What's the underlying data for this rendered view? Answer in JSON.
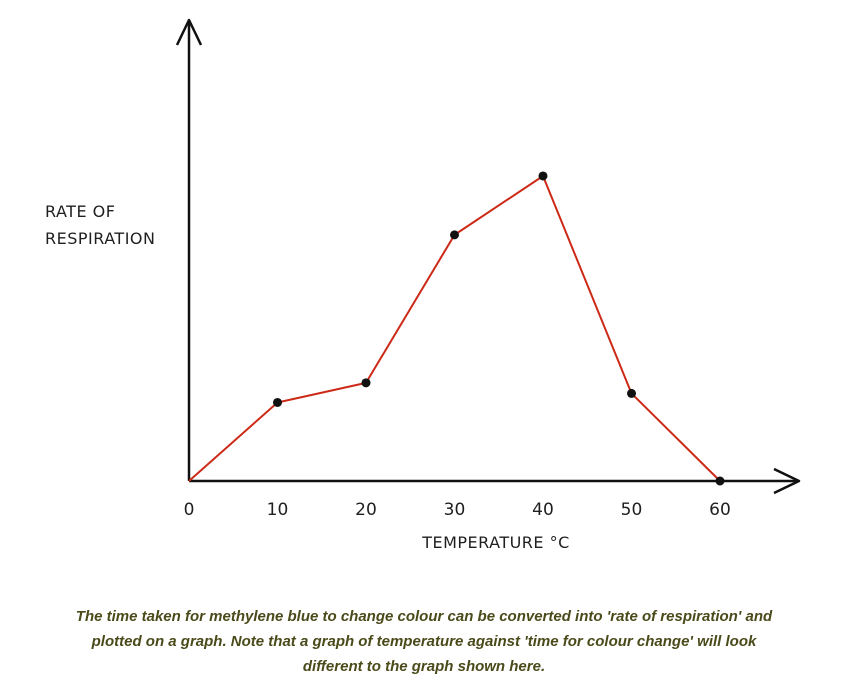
{
  "chart_data": {
    "type": "line",
    "x": [
      0,
      10,
      20,
      30,
      40,
      50,
      60
    ],
    "series": [
      {
        "values": [
          0,
          2.6,
          3.25,
          8.15,
          10.1,
          2.9,
          0
        ]
      }
    ],
    "xticks": [
      "0",
      "10",
      "20",
      "30",
      "40",
      "50",
      "60"
    ],
    "xlabel": "TEMPERATURE °C",
    "ylabel_lines": [
      "RATE  OF",
      "RESPIRATION"
    ],
    "xlim": [
      0,
      60
    ],
    "ylim": [
      0,
      15
    ],
    "y_ticks_shown": false,
    "grid": false,
    "legend": "none",
    "colors": {
      "line": "#cc2a17",
      "points": "#111111",
      "axes": "#111111"
    }
  },
  "caption": {
    "lines": [
      "The time taken for methylene blue to change colour can be converted into 'rate of respiration' and",
      "plotted on a graph. Note that a graph of temperature against 'time for colour change' will look",
      "different to the graph shown here."
    ]
  }
}
